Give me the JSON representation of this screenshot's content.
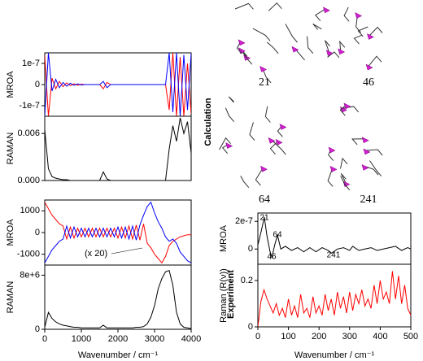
{
  "side_labels": [
    "Calculation",
    "Experiment"
  ],
  "mode_labels": [
    "21",
    "46",
    "64",
    "241"
  ],
  "chart_data": [
    {
      "type": "line",
      "ylabel": "MROA",
      "xlim": [
        0,
        4000
      ],
      "ylim": [
        -1.5e-07,
        1.5e-07
      ],
      "yticks": [
        {
          "value": 1e-07,
          "label": "1e-7"
        },
        0,
        {
          "value": -1e-07,
          "label": "-1e-7"
        }
      ],
      "x": [
        0,
        100,
        200,
        300,
        400,
        500,
        600,
        700,
        800,
        900,
        1000,
        1100,
        1200,
        1300,
        1400,
        1500,
        1600,
        1700,
        1800,
        1900,
        2000,
        2100,
        2200,
        2300,
        2400,
        2500,
        2600,
        2700,
        2800,
        2900,
        3000,
        3100,
        3200,
        3300,
        3400,
        3500,
        3600,
        3700,
        3800,
        3900,
        4000
      ],
      "series": [
        {
          "color": "#ff0000",
          "values": [
            1.4e-07,
            -1.5e-07,
            3e-08,
            -2e-08,
            1.5e-08,
            -1e-08,
            8e-09,
            -5e-09,
            4e-09,
            -3e-09,
            2e-09,
            0,
            0,
            0,
            0,
            0,
            -2e-08,
            1e-08,
            0,
            0,
            0,
            0,
            0,
            0,
            0,
            0,
            0,
            0,
            0,
            0,
            0,
            0,
            0,
            0,
            -1.2e-07,
            1.5e-07,
            -1.5e-07,
            1.3e-07,
            -1.5e-07,
            1e-07,
            -1.4e-07
          ]
        },
        {
          "color": "#0000ff",
          "values": [
            -1.5e-07,
            1.5e-07,
            -3e-08,
            2.5e-08,
            -1.5e-08,
            1e-08,
            -8e-09,
            6e-09,
            -4e-09,
            3e-09,
            -2e-09,
            0,
            0,
            0,
            0,
            0,
            1.5e-08,
            -1.5e-08,
            0,
            0,
            0,
            0,
            0,
            0,
            0,
            0,
            0,
            0,
            0,
            0,
            0,
            0,
            0,
            0,
            1.5e-07,
            -1.3e-07,
            1.5e-07,
            -1.5e-07,
            1.4e-07,
            -1.2e-07,
            1.5e-07
          ]
        }
      ]
    },
    {
      "type": "line",
      "ylabel": "RAMAN",
      "xlim": [
        0,
        4000
      ],
      "ylim": [
        0,
        0.0082
      ],
      "yticks": [
        {
          "value": 0,
          "label": "0.000"
        },
        0.006
      ],
      "x": [
        0,
        100,
        200,
        300,
        400,
        500,
        600,
        700,
        800,
        900,
        1000,
        1100,
        1200,
        1300,
        1400,
        1500,
        1600,
        1700,
        1800,
        1900,
        2000,
        2100,
        2200,
        2300,
        2400,
        2500,
        2600,
        2700,
        2800,
        2900,
        3000,
        3100,
        3200,
        3300,
        3400,
        3500,
        3600,
        3700,
        3800,
        3900,
        4000
      ],
      "series": [
        {
          "color": "#000000",
          "values": [
            0.0065,
            0.0015,
            0.0005,
            0.0003,
            0.0002,
            0.0001,
            0.0001,
            0,
            0,
            0,
            0,
            0,
            0,
            0,
            0,
            0,
            0.0011,
            0.0002,
            0,
            0,
            0,
            0,
            0,
            0,
            0,
            0,
            0,
            0,
            0,
            0,
            0,
            0,
            0,
            0,
            0.004,
            0.007,
            0.005,
            0.008,
            0.006,
            0.0075,
            0.0035
          ]
        }
      ]
    },
    {
      "type": "line",
      "ylabel": "MROA",
      "xlim": [
        0,
        4000
      ],
      "ylim": [
        -1500,
        1500
      ],
      "yticks": [
        1000,
        0,
        -1000
      ],
      "annotation": "(x 20)",
      "x": [
        0,
        100,
        200,
        300,
        400,
        500,
        600,
        700,
        800,
        900,
        1000,
        1100,
        1200,
        1300,
        1400,
        1500,
        1600,
        1700,
        1800,
        1900,
        2000,
        2100,
        2200,
        2300,
        2400,
        2500,
        2600,
        2700,
        2800,
        2900,
        3000,
        3100,
        3200,
        3300,
        3400,
        3500,
        3600,
        3700,
        3800,
        3900,
        4000
      ],
      "series": [
        {
          "color": "#ff0000",
          "values": [
            1400,
            1100,
            800,
            600,
            400,
            300,
            -300,
            250,
            -250,
            200,
            -200,
            200,
            -200,
            200,
            -200,
            200,
            -200,
            200,
            -200,
            200,
            -250,
            250,
            -250,
            300,
            -300,
            350,
            -350,
            400,
            -500,
            -700,
            -1000,
            -1200,
            -1400,
            -1100,
            -600,
            -400,
            -300,
            -200,
            -150,
            -100,
            -100
          ]
        },
        {
          "color": "#0000ff",
          "values": [
            -1400,
            -1100,
            -800,
            -600,
            -400,
            -300,
            300,
            -250,
            250,
            -200,
            200,
            -200,
            200,
            -200,
            200,
            -200,
            200,
            -200,
            200,
            -200,
            250,
            -250,
            250,
            -300,
            300,
            -350,
            350,
            800,
            1200,
            1400,
            900,
            500,
            200,
            -200,
            -400,
            -300,
            -500,
            -900,
            -1100,
            -1300,
            -1400
          ]
        }
      ]
    },
    {
      "type": "line",
      "ylabel": "RAMAN",
      "xlabel": "Wavenumber / cm⁻¹",
      "xlim": [
        0,
        4000
      ],
      "ylim": [
        0,
        9500000
      ],
      "yticks": [
        0,
        {
          "value": 8000000,
          "label": "8e+6"
        }
      ],
      "xticks": [
        0,
        1000,
        2000,
        3000,
        4000
      ],
      "x": [
        0,
        100,
        200,
        300,
        400,
        500,
        600,
        700,
        800,
        900,
        1000,
        1100,
        1200,
        1300,
        1400,
        1500,
        1600,
        1700,
        1800,
        1900,
        2000,
        2100,
        2200,
        2300,
        2400,
        2500,
        2600,
        2700,
        2800,
        2900,
        3000,
        3100,
        3200,
        3300,
        3400,
        3500,
        3600,
        3700,
        3800,
        3900,
        4000
      ],
      "series": [
        {
          "color": "#000000",
          "values": [
            300000,
            2500000,
            1600000,
            1100000,
            800000,
            600000,
            500000,
            400000,
            300000,
            300000,
            200000,
            200000,
            200000,
            200000,
            200000,
            200000,
            600000,
            200000,
            200000,
            200000,
            200000,
            200000,
            200000,
            200000,
            200000,
            300000,
            300000,
            400000,
            800000,
            1800000,
            3500000,
            6000000,
            7500000,
            8500000,
            8700000,
            6500000,
            2500000,
            800000,
            300000,
            200000,
            100000
          ]
        }
      ]
    },
    {
      "type": "line",
      "ylabel": "MROA",
      "xlim": [
        0,
        500
      ],
      "ylim": [
        -1.1e-07,
        2.6e-07
      ],
      "yticks": [
        {
          "value": 2e-07,
          "label": "2e-7"
        },
        0
      ],
      "annotations": [
        "21",
        "64",
        "46",
        "241"
      ],
      "x": [
        0,
        10,
        21,
        30,
        40,
        46,
        55,
        64,
        75,
        90,
        110,
        130,
        150,
        170,
        190,
        210,
        230,
        241,
        260,
        280,
        300,
        310,
        330,
        350,
        370,
        390,
        410,
        430,
        450,
        470,
        490,
        500
      ],
      "series": [
        {
          "color": "#000000",
          "values": [
            3e-08,
            1.2e-07,
            2.3e-07,
            9e-08,
            -2e-08,
            -6e-08,
            3e-08,
            1e-07,
            0,
            2e-08,
            -1e-08,
            1e-08,
            -2e-08,
            1e-08,
            -2e-08,
            1e-08,
            -1e-08,
            -3e-08,
            0,
            1e-08,
            -1e-08,
            2e-08,
            -1e-08,
            0,
            1e-08,
            -1e-08,
            0,
            1e-08,
            2e-08,
            -1e-08,
            1e-08,
            0
          ]
        }
      ]
    },
    {
      "type": "line",
      "ylabel": "Raman (R(ν))",
      "xlabel": "Wavenumber / cm⁻¹",
      "xlim": [
        0,
        500
      ],
      "ylim": [
        0,
        0.27
      ],
      "yticks": [
        0.2,
        0
      ],
      "xticks": [
        0,
        100,
        200,
        300,
        400,
        500
      ],
      "x": [
        0,
        10,
        20,
        30,
        40,
        50,
        60,
        70,
        80,
        90,
        100,
        110,
        120,
        130,
        140,
        150,
        160,
        170,
        180,
        190,
        200,
        210,
        220,
        230,
        240,
        250,
        260,
        270,
        280,
        290,
        300,
        310,
        320,
        330,
        340,
        350,
        360,
        370,
        380,
        390,
        400,
        410,
        420,
        430,
        440,
        450,
        460,
        470,
        480,
        490,
        500
      ],
      "series": [
        {
          "color": "#ff0000",
          "values": [
            0,
            0.11,
            0.16,
            0.12,
            0.09,
            0.06,
            0.1,
            0.05,
            0.08,
            0.04,
            0.12,
            0.05,
            0.09,
            0.04,
            0.14,
            0.06,
            0.08,
            0.04,
            0.13,
            0.06,
            0.09,
            0.05,
            0.14,
            0.07,
            0.12,
            0.05,
            0.15,
            0.08,
            0.13,
            0.06,
            0.15,
            0.07,
            0.14,
            0.1,
            0.16,
            0.09,
            0.12,
            0.08,
            0.18,
            0.1,
            0.2,
            0.12,
            0.15,
            0.1,
            0.24,
            0.12,
            0.22,
            0.1,
            0.18,
            0.08,
            0.05
          ]
        }
      ]
    }
  ]
}
